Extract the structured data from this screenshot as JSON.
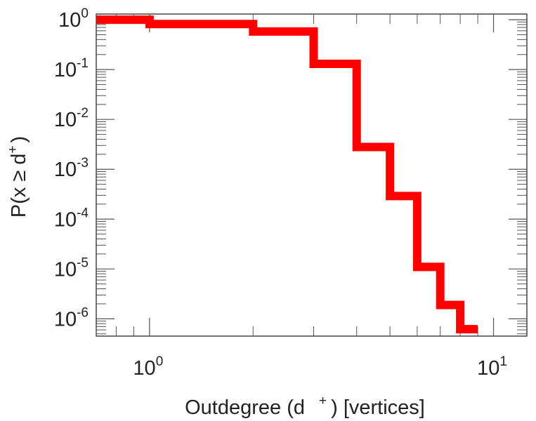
{
  "chart_data": {
    "type": "line",
    "step": true,
    "log_x": true,
    "log_y": true,
    "title": "",
    "xlabel": {
      "main": "Outdegree (d",
      "superscript": "+",
      "suffix": ") [vertices]"
    },
    "ylabel": {
      "main": "P(x ≥ d",
      "superscript": "+",
      "suffix": ")"
    },
    "xlim": [
      0.7,
      12.5
    ],
    "ylim": [
      4.5e-07,
      1.3
    ],
    "grid": false,
    "legend": "none",
    "color": "#ff0000",
    "x_ticks": [
      {
        "value": 1,
        "base": "10",
        "exp": "0"
      },
      {
        "value": 10,
        "base": "10",
        "exp": "1"
      }
    ],
    "y_ticks": [
      {
        "value": 1,
        "base": "10",
        "exp": "0"
      },
      {
        "value": 0.1,
        "base": "10",
        "exp": "-1"
      },
      {
        "value": 0.01,
        "base": "10",
        "exp": "-2"
      },
      {
        "value": 0.001,
        "base": "10",
        "exp": "-3"
      },
      {
        "value": 0.0001,
        "base": "10",
        "exp": "-4"
      },
      {
        "value": 1e-05,
        "base": "10",
        "exp": "-5"
      },
      {
        "value": 1e-06,
        "base": "10",
        "exp": "-6"
      }
    ],
    "series": [
      {
        "x": [
          0.7,
          1,
          2,
          3,
          4,
          5,
          6,
          7,
          8,
          9
        ],
        "y": [
          1.0,
          0.82,
          0.58,
          0.13,
          0.0028,
          0.00029,
          1.1e-05,
          1.9e-06,
          6.2e-07,
          6.2e-07
        ]
      }
    ]
  }
}
